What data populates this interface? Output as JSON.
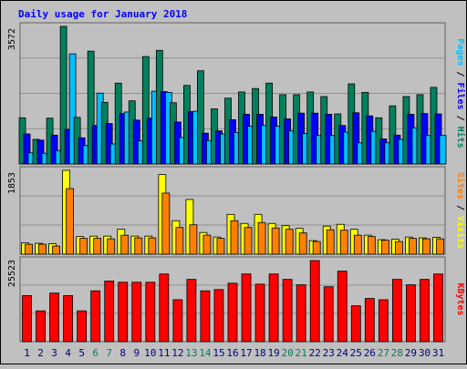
{
  "chart_data": {
    "type": "bar",
    "title": "Daily usage for January 2018",
    "categories": [
      "1",
      "2",
      "3",
      "4",
      "5",
      "6",
      "7",
      "8",
      "9",
      "10",
      "11",
      "12",
      "13",
      "14",
      "15",
      "16",
      "17",
      "18",
      "19",
      "20",
      "21",
      "22",
      "23",
      "24",
      "25",
      "26",
      "27",
      "28",
      "29",
      "30",
      "31"
    ],
    "weekend_days": [
      "6",
      "7",
      "13",
      "14",
      "20",
      "21",
      "27",
      "28"
    ],
    "colors": {
      "background": "#c0c0c0",
      "frame": "#606060",
      "title": "#0000ff",
      "hits": "#00805c",
      "files": "#0000ff",
      "pages": "#00c0ff",
      "visits": "#ffff00",
      "sites": "#ff8000",
      "kbytes": "#ff0000",
      "weekend_label": "#00805c",
      "weekday_label": "#000080"
    },
    "panels": [
      {
        "id": "hits-files-pages",
        "ymax_label": "3572",
        "ymax": 3572,
        "right_label_parts": [
          {
            "text": "Pages",
            "color": "#00c0ff"
          },
          {
            "text": " / ",
            "color": "#000000"
          },
          {
            "text": "Files",
            "color": "#0000ff"
          },
          {
            "text": " / ",
            "color": "#000000"
          },
          {
            "text": "Hits",
            "color": "#00805c"
          }
        ],
        "series": [
          {
            "name": "Hits",
            "color": "#00805c",
            "values": [
              1200,
              640,
              1190,
              3572,
              1210,
              2930,
              1600,
              2100,
              1640,
              2790,
              2950,
              1590,
              2040,
              2420,
              1430,
              1710,
              1870,
              1960,
              2100,
              1800,
              1800,
              1870,
              1750,
              1300,
              2080,
              1860,
              1200,
              1510,
              1750,
              1800,
              1990
            ]
          },
          {
            "name": "Files",
            "color": "#0000ff",
            "values": [
              780,
              620,
              750,
              900,
              680,
              1000,
              1050,
              1310,
              1140,
              1190,
              1880,
              1090,
              1360,
              800,
              860,
              1150,
              1290,
              1290,
              1220,
              1170,
              1320,
              1320,
              1290,
              1000,
              1330,
              1250,
              650,
              750,
              1290,
              1310,
              1300
            ]
          },
          {
            "name": "Pages",
            "color": "#00c0ff",
            "values": [
              290,
              280,
              350,
              2860,
              480,
              1840,
              520,
              1350,
              600,
              1890,
              1860,
              690,
              1370,
              610,
              780,
              820,
              980,
              1000,
              980,
              860,
              790,
              740,
              740,
              830,
              550,
              850,
              550,
              640,
              940,
              740,
              740
            ]
          }
        ]
      },
      {
        "id": "visits-sites",
        "ymax_label": "1853",
        "ymax": 1853,
        "right_label_parts": [
          {
            "text": "Sites",
            "color": "#ff8000"
          },
          {
            "text": " / ",
            "color": "#000000"
          },
          {
            "text": "Visits",
            "color": "#ffff00"
          }
        ],
        "series": [
          {
            "name": "Visits",
            "color": "#ffff00",
            "values": [
              250,
              240,
              230,
              1853,
              390,
              400,
              400,
              550,
              400,
              400,
              1760,
              740,
              1210,
              480,
              380,
              880,
              680,
              880,
              680,
              630,
              570,
              300,
              620,
              660,
              550,
              420,
              320,
              330,
              380,
              360,
              370
            ]
          },
          {
            "name": "Sites",
            "color": "#ff8000",
            "values": [
              220,
              220,
              180,
              1450,
              350,
              350,
              340,
              420,
              360,
              360,
              1350,
              590,
              650,
              420,
              350,
              740,
              590,
              700,
              580,
              550,
              470,
              280,
              540,
              530,
              420,
              390,
              310,
              280,
              350,
              340,
              340
            ]
          }
        ]
      },
      {
        "id": "kbytes",
        "ymax_label": "25523",
        "ymax": 25523,
        "right_label_parts": [
          {
            "text": "KBytes",
            "color": "#ff0000"
          }
        ],
        "series": [
          {
            "name": "KBytes",
            "color": "#ff0000",
            "values": [
              14500,
              9700,
              15300,
              14500,
              9700,
              16000,
              19100,
              18700,
              18700,
              18700,
              21300,
              13200,
              19600,
              16000,
              16400,
              18400,
              21300,
              18100,
              21300,
              19600,
              17900,
              25523,
              17300,
              22200,
              11300,
              13600,
              13200,
              19600,
              17900,
              19600,
              21300
            ]
          }
        ]
      }
    ]
  }
}
